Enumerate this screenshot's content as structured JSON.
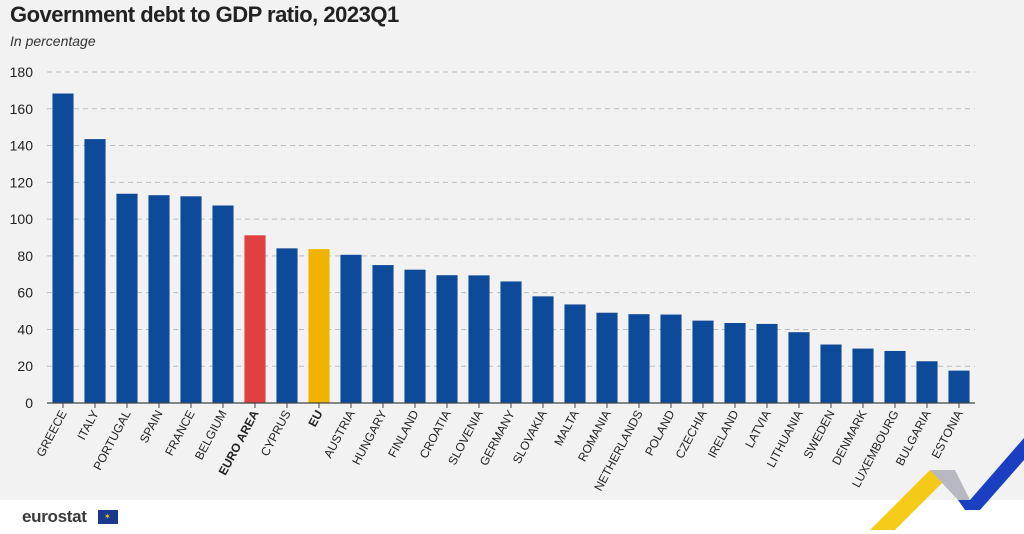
{
  "title": "Government debt to GDP ratio, 2023Q1",
  "subtitle": "In percentage",
  "logo": "eurostat",
  "colors": {
    "country": "#0e4a9a",
    "euro_area": "#e04040",
    "eu": "#f0b400",
    "grid": "#bdbdbd",
    "axis": "#444444"
  },
  "chart_data": {
    "type": "bar",
    "title": "Government debt to GDP ratio, 2023Q1",
    "subtitle": "In percentage",
    "xlabel": "",
    "ylabel": "",
    "ylim": [
      0,
      180
    ],
    "yticks": [
      0,
      20,
      40,
      60,
      80,
      100,
      120,
      140,
      160,
      180
    ],
    "grid": true,
    "categories": [
      "GREECE",
      "ITALY",
      "PORTUGAL",
      "SPAIN",
      "FRANCE",
      "BELGIUM",
      "EURO AREA",
      "CYPRUS",
      "EU",
      "AUSTRIA",
      "HUNGARY",
      "FINLAND",
      "CROATIA",
      "SLOVENIA",
      "GERMANY",
      "SLOVAKIA",
      "MALTA",
      "ROMANIA",
      "NETHERLANDS",
      "POLAND",
      "CZECHIA",
      "IRELAND",
      "LATVIA",
      "LITHUANIA",
      "SWEDEN",
      "DENMARK",
      "LUXEMBOURG",
      "BULGARIA",
      "ESTONIA"
    ],
    "values": [
      168.3,
      143.5,
      113.8,
      113.0,
      112.4,
      107.4,
      91.2,
      84.1,
      83.7,
      80.6,
      75.0,
      72.5,
      69.5,
      69.4,
      66.1,
      58.0,
      53.6,
      49.1,
      48.3,
      48.1,
      44.8,
      43.5,
      43.0,
      38.5,
      31.8,
      29.6,
      28.3,
      22.7,
      17.6
    ],
    "highlight": {
      "EURO AREA": "euro_area",
      "EU": "eu"
    },
    "bold_categories": [
      "EURO AREA",
      "EU"
    ]
  }
}
